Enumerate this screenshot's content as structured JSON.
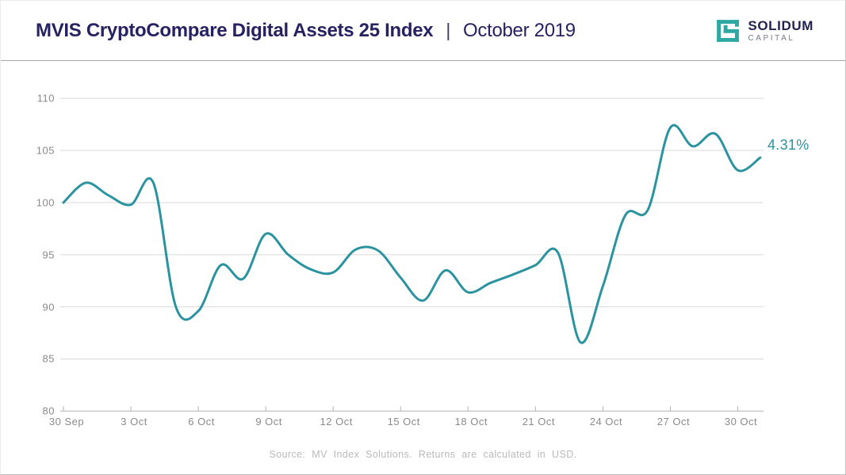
{
  "header": {
    "title_main": "MVIS CryptoCompare Digital Assets 25 Index",
    "title_separator": "|",
    "title_period": "October 2019",
    "logo": {
      "name": "SOLIDUM",
      "subname": "CAPITAL"
    }
  },
  "chart_data": {
    "type": "line",
    "title": "MVIS CryptoCompare Digital Assets 25 Index | October 2019",
    "x": [
      "30 Sep",
      "1 Oct",
      "2 Oct",
      "3 Oct",
      "4 Oct",
      "5 Oct",
      "6 Oct",
      "7 Oct",
      "8 Oct",
      "9 Oct",
      "10 Oct",
      "11 Oct",
      "12 Oct",
      "13 Oct",
      "14 Oct",
      "15 Oct",
      "16 Oct",
      "17 Oct",
      "18 Oct",
      "19 Oct",
      "20 Oct",
      "21 Oct",
      "22 Oct",
      "23 Oct",
      "24 Oct",
      "25 Oct",
      "26 Oct",
      "27 Oct",
      "28 Oct",
      "29 Oct",
      "30 Oct",
      "31 Oct"
    ],
    "values": [
      100.0,
      101.9,
      100.7,
      99.8,
      101.9,
      90.0,
      89.6,
      94.0,
      92.7,
      97.0,
      95.0,
      93.6,
      93.3,
      95.5,
      95.4,
      92.8,
      90.6,
      93.5,
      91.4,
      92.3,
      93.1,
      94.0,
      95.2,
      86.6,
      92.0,
      98.8,
      99.3,
      107.2,
      105.4,
      106.6,
      103.1,
      104.31
    ],
    "x_tick_labels": [
      "30 Sep",
      "3 Oct",
      "6 Oct",
      "9 Oct",
      "12 Oct",
      "15 Oct",
      "18 Oct",
      "21 Oct",
      "24 Oct",
      "27 Oct",
      "30 Oct"
    ],
    "x_tick_indices": [
      0,
      3,
      6,
      9,
      12,
      15,
      18,
      21,
      24,
      27,
      30
    ],
    "y_ticks": [
      80,
      85,
      90,
      95,
      100,
      105,
      110
    ],
    "ylim": [
      80,
      111.5
    ],
    "grid": true,
    "legend_position": "none",
    "end_label": "4.31%",
    "line_color": "#2b93a0"
  },
  "footer": {
    "source": "Source: MV Index Solutions. Returns are calculated in USD."
  },
  "colors": {
    "navy": "#262262",
    "teal_line": "#2b93a0",
    "logo_teal": "#2ea8a2",
    "axis_text": "#8a8a8a",
    "gridline": "#d9d9d9",
    "axis_line": "#b3b3b3",
    "footer_text": "#b9b9b9"
  }
}
